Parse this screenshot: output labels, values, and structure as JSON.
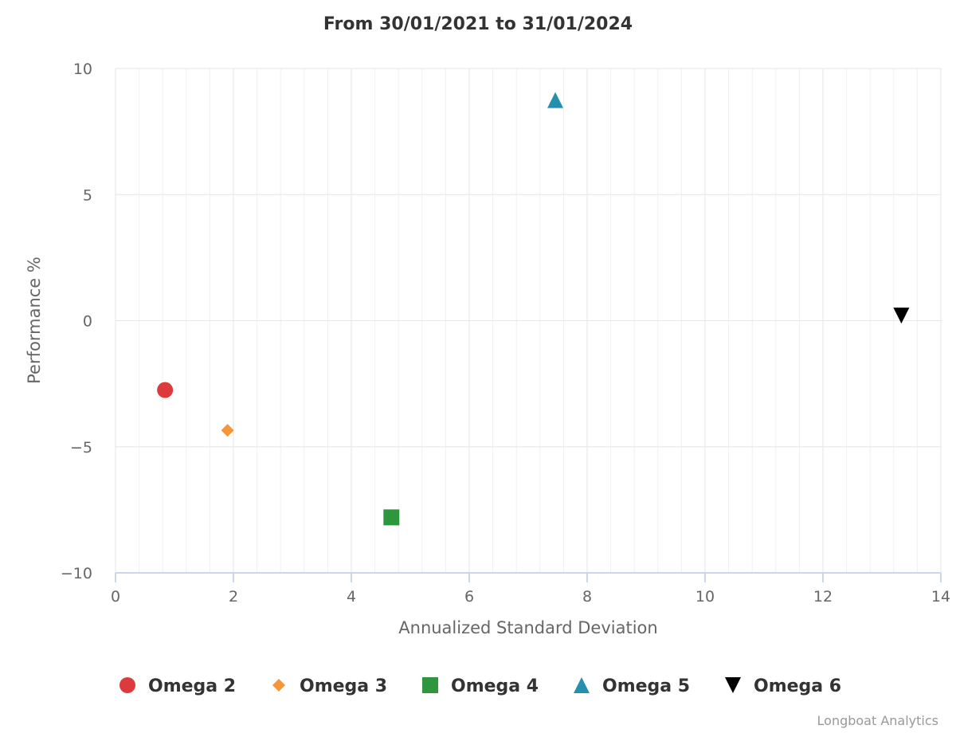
{
  "chart_data": {
    "type": "scatter",
    "title": "From 30/01/2021 to 31/01/2024",
    "xlabel": "Annualized Standard Deviation",
    "ylabel": "Performance %",
    "xlim": [
      0,
      14
    ],
    "ylim": [
      -10,
      10
    ],
    "x_ticks": [
      0,
      2,
      4,
      6,
      8,
      10,
      12,
      14
    ],
    "y_ticks": [
      10,
      5,
      0,
      -5,
      -10
    ],
    "x_tick_labels": [
      "0",
      "2",
      "4",
      "6",
      "8",
      "10",
      "12",
      "14"
    ],
    "y_tick_labels": [
      "10",
      "5",
      "0",
      "−5",
      "−10"
    ],
    "grid": true,
    "legend_position": "bottom",
    "series": [
      {
        "name": "Omega 2",
        "x": 0.84,
        "y": -2.75,
        "marker": "circle",
        "color": "#dd3a3e"
      },
      {
        "name": "Omega 3",
        "x": 1.9,
        "y": -4.35,
        "marker": "diamond",
        "color": "#f7953a"
      },
      {
        "name": "Omega 4",
        "x": 4.68,
        "y": -7.8,
        "marker": "square",
        "color": "#2e963e"
      },
      {
        "name": "Omega 5",
        "x": 7.46,
        "y": 8.75,
        "marker": "triangle",
        "color": "#2590ae"
      },
      {
        "name": "Omega 6",
        "x": 13.33,
        "y": 0.2,
        "marker": "triangle-down",
        "color": "#000000"
      }
    ]
  },
  "credits": "Longboat Analytics"
}
